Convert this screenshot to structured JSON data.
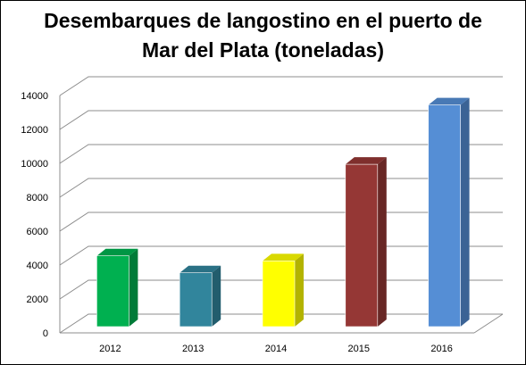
{
  "chart_data": {
    "type": "bar",
    "title": "Desembarques de langostino en el puerto de Mar del Plata (toneladas)",
    "title_lines": [
      "Desembarques de langostino en el puerto de",
      "Mar del Plata (toneladas)"
    ],
    "categories": [
      "2012",
      "2013",
      "2014",
      "2015",
      "2016"
    ],
    "values": [
      4700,
      3700,
      4400,
      10100,
      13600
    ],
    "colors": [
      "#00b050",
      "#31859c",
      "#ffff00",
      "#953735",
      "#558ed5"
    ],
    "ylim": [
      0,
      14000
    ],
    "yticks": [
      "0",
      "2000",
      "4000",
      "6000",
      "8000",
      "10000",
      "12000",
      "14000"
    ],
    "grid": true,
    "legend": "none",
    "style": "3d-column"
  }
}
